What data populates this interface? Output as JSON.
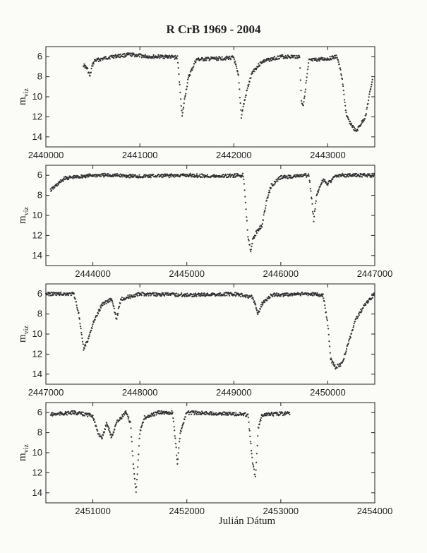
{
  "chart_data": {
    "title": "R CrB 1969 - 2004",
    "xlabel": "Julián Dátum",
    "ylabel": "m",
    "ylabel_sub": "viz",
    "type": "scatter",
    "y_inverted": true,
    "ylim": [
      15,
      5
    ],
    "yticks": [
      6,
      8,
      10,
      12,
      14
    ],
    "panels": [
      {
        "xlim": [
          2440000,
          2443500
        ],
        "xticks": [
          2440000,
          2441000,
          2442000,
          2443000
        ],
        "points": [
          [
            2440400,
            6.8
          ],
          [
            2440440,
            7.2
          ],
          [
            2440470,
            8.0
          ],
          [
            2440490,
            7.0
          ],
          [
            2440520,
            6.4
          ],
          [
            2440700,
            6.0
          ],
          [
            2440900,
            5.8
          ],
          [
            2441100,
            6.0
          ],
          [
            2441300,
            6.0
          ],
          [
            2441400,
            6.1
          ],
          [
            2441430,
            9.5
          ],
          [
            2441450,
            12.0
          ],
          [
            2441480,
            10.0
          ],
          [
            2441520,
            8.0
          ],
          [
            2441600,
            6.3
          ],
          [
            2441800,
            6.2
          ],
          [
            2442000,
            6.1
          ],
          [
            2442050,
            8.0
          ],
          [
            2442080,
            12.0
          ],
          [
            2442100,
            11.0
          ],
          [
            2442150,
            9.0
          ],
          [
            2442200,
            7.5
          ],
          [
            2442300,
            6.5
          ],
          [
            2442500,
            6.0
          ],
          [
            2442700,
            6.0
          ],
          [
            2442720,
            10.5
          ],
          [
            2442740,
            10.8
          ],
          [
            2442800,
            6.4
          ],
          [
            2443000,
            6.2
          ],
          [
            2443100,
            6.0
          ],
          [
            2443150,
            8.0
          ],
          [
            2443200,
            12.0
          ],
          [
            2443300,
            13.5
          ],
          [
            2443400,
            12.0
          ],
          [
            2443480,
            8.0
          ]
        ]
      },
      {
        "xlim": [
          2443500,
          2447000
        ],
        "xticks": [
          2444000,
          2445000,
          2446000,
          2447000
        ],
        "points": [
          [
            2443550,
            7.5
          ],
          [
            2443700,
            6.3
          ],
          [
            2444000,
            6.0
          ],
          [
            2444200,
            6.0
          ],
          [
            2444500,
            6.1
          ],
          [
            2445000,
            6.0
          ],
          [
            2445300,
            6.1
          ],
          [
            2445600,
            6.0
          ],
          [
            2445620,
            8.0
          ],
          [
            2445650,
            12.0
          ],
          [
            2445680,
            13.5
          ],
          [
            2445700,
            12.5
          ],
          [
            2445750,
            11.5
          ],
          [
            2445800,
            11.0
          ],
          [
            2445850,
            8.5
          ],
          [
            2445900,
            7.0
          ],
          [
            2446000,
            6.2
          ],
          [
            2446300,
            6.0
          ],
          [
            2446330,
            8.5
          ],
          [
            2446350,
            10.5
          ],
          [
            2446380,
            8.0
          ],
          [
            2446420,
            7.0
          ],
          [
            2446450,
            6.5
          ],
          [
            2446500,
            6.8
          ],
          [
            2446600,
            6.0
          ],
          [
            2446800,
            6.0
          ],
          [
            2447000,
            6.0
          ]
        ]
      },
      {
        "xlim": [
          2447000,
          2450500
        ],
        "xticks": [
          2447000,
          2448000,
          2449000,
          2450000
        ],
        "points": [
          [
            2447000,
            6.0
          ],
          [
            2447300,
            6.0
          ],
          [
            2447350,
            8.0
          ],
          [
            2447400,
            11.5
          ],
          [
            2447450,
            10.5
          ],
          [
            2447500,
            9.0
          ],
          [
            2447600,
            7.0
          ],
          [
            2447700,
            6.5
          ],
          [
            2447750,
            8.5
          ],
          [
            2447800,
            6.5
          ],
          [
            2448000,
            6.0
          ],
          [
            2448500,
            6.1
          ],
          [
            2449000,
            6.0
          ],
          [
            2449200,
            6.3
          ],
          [
            2449260,
            8.0
          ],
          [
            2449300,
            7.0
          ],
          [
            2449400,
            6.1
          ],
          [
            2449800,
            6.0
          ],
          [
            2449950,
            6.1
          ],
          [
            2450000,
            9.0
          ],
          [
            2450030,
            12.5
          ],
          [
            2450080,
            13.3
          ],
          [
            2450150,
            13.0
          ],
          [
            2450200,
            11.5
          ],
          [
            2450300,
            8.5
          ],
          [
            2450400,
            7.0
          ],
          [
            2450500,
            6.0
          ]
        ]
      },
      {
        "xlim": [
          2450500,
          2454000
        ],
        "xticks": [
          2451000,
          2452000,
          2453000,
          2454000
        ],
        "points": [
          [
            2450550,
            6.2
          ],
          [
            2450800,
            6.0
          ],
          [
            2451000,
            6.3
          ],
          [
            2451050,
            8.0
          ],
          [
            2451100,
            8.5
          ],
          [
            2451150,
            7.0
          ],
          [
            2451200,
            8.5
          ],
          [
            2451250,
            7.0
          ],
          [
            2451350,
            6.0
          ],
          [
            2451400,
            7.0
          ],
          [
            2451430,
            11.0
          ],
          [
            2451460,
            14.0
          ],
          [
            2451500,
            8.0
          ],
          [
            2451550,
            6.5
          ],
          [
            2451700,
            6.0
          ],
          [
            2451850,
            6.0
          ],
          [
            2451900,
            11.0
          ],
          [
            2451930,
            8.0
          ],
          [
            2452000,
            6.0
          ],
          [
            2452400,
            6.1
          ],
          [
            2452650,
            6.2
          ],
          [
            2452700,
            11.0
          ],
          [
            2452730,
            12.5
          ],
          [
            2452760,
            7.5
          ],
          [
            2452800,
            6.2
          ],
          [
            2453000,
            6.1
          ],
          [
            2453100,
            6.1
          ]
        ]
      }
    ]
  }
}
